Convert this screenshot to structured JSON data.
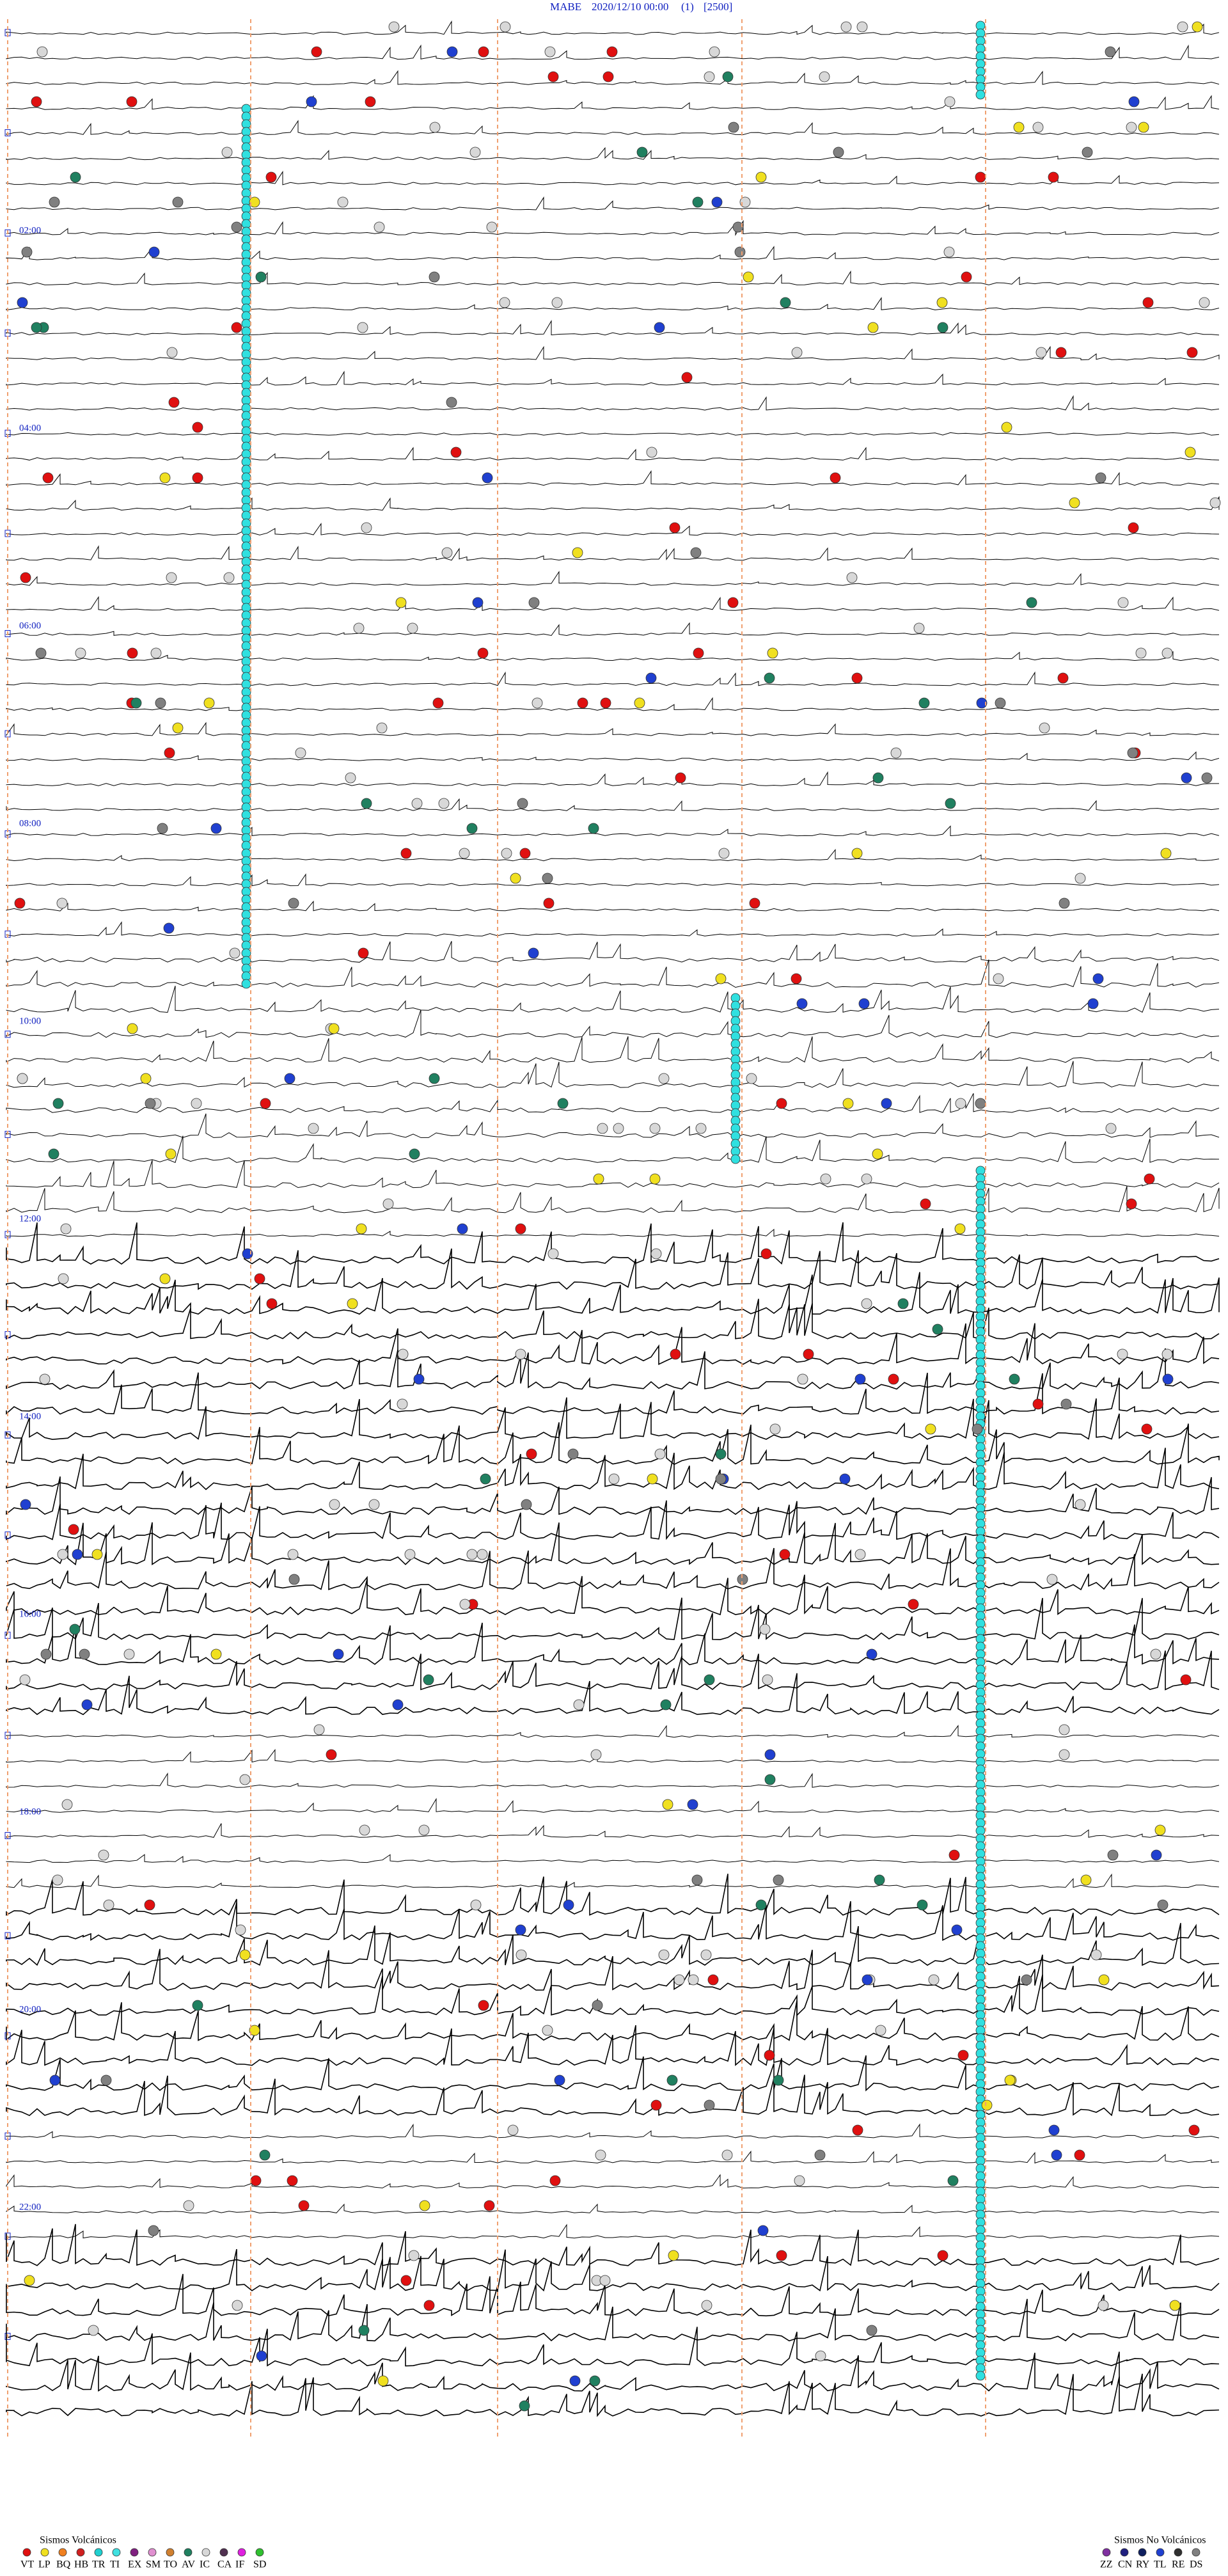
{
  "header": {
    "station": "MABE",
    "datetime": "2020/12/10 00:00",
    "channel": "(1)",
    "scale": "[2500]"
  },
  "time_labels": [
    "02:00",
    "04:00",
    "06:00",
    "08:00",
    "10:00",
    "12:00",
    "14:00",
    "16:00",
    "18:00",
    "20:00",
    "22:00"
  ],
  "legend": {
    "volcanic": {
      "title": "Sismos Volcánicos",
      "items": [
        {
          "code": "VT",
          "color": "#e01010"
        },
        {
          "code": "LP",
          "color": "#f0e020"
        },
        {
          "code": "BQ",
          "color": "#f08020"
        },
        {
          "code": "HB",
          "color": "#d02020"
        },
        {
          "code": "TR",
          "color": "#20d0d0"
        },
        {
          "code": "TI",
          "color": "#40e0e0"
        },
        {
          "code": "EX",
          "color": "#802080"
        },
        {
          "code": "SM",
          "color": "#e090d0"
        },
        {
          "code": "TO",
          "color": "#d08030"
        },
        {
          "code": "AV",
          "color": "#208060"
        },
        {
          "code": "IC",
          "color": "#d8d8d8"
        },
        {
          "code": "CA",
          "color": "#503050"
        },
        {
          "code": "IF",
          "color": "#e020e0"
        },
        {
          "code": "SD",
          "color": "#30c030"
        }
      ]
    },
    "non_volcanic": {
      "title": "Sismos No Volcánicos",
      "items": [
        {
          "code": "ZZ",
          "color": "#8030a0"
        },
        {
          "code": "CN",
          "color": "#202080"
        },
        {
          "code": "RY",
          "color": "#102060"
        },
        {
          "code": "TL",
          "color": "#2040d0"
        },
        {
          "code": "RE",
          "color": "#303030"
        },
        {
          "code": "DS",
          "color": "#808080"
        }
      ]
    }
  }
}
